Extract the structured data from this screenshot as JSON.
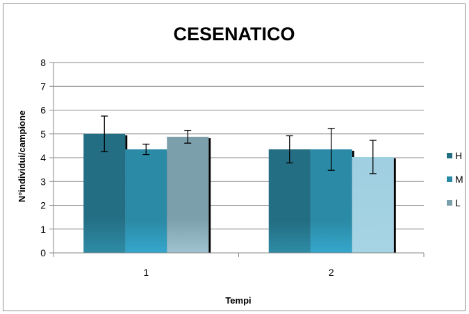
{
  "chart_data": {
    "type": "bar",
    "title": "CESENATICO",
    "xlabel": "Tempi",
    "ylabel": "N°individui/campione",
    "categories": [
      "1",
      "2"
    ],
    "ylim": [
      0,
      8
    ],
    "yticks": [
      "0",
      "1",
      "2",
      "3",
      "4",
      "5",
      "6",
      "7",
      "8"
    ],
    "grid": true,
    "legend_position": "right",
    "series": [
      {
        "name": "H",
        "values": [
          5.0,
          4.35
        ],
        "errors": [
          0.75,
          0.57
        ],
        "color": "#236e83"
      },
      {
        "name": "M",
        "values": [
          4.35,
          4.35
        ],
        "errors": [
          0.22,
          0.88
        ],
        "color": "#2b8ba7"
      },
      {
        "name": "L",
        "values": [
          4.88,
          4.03
        ],
        "errors": [
          0.27,
          0.7
        ],
        "color": "#7b9fab"
      }
    ],
    "bar_colors_by_category": {
      "2": {
        "L": "#9fcfe0"
      }
    }
  }
}
